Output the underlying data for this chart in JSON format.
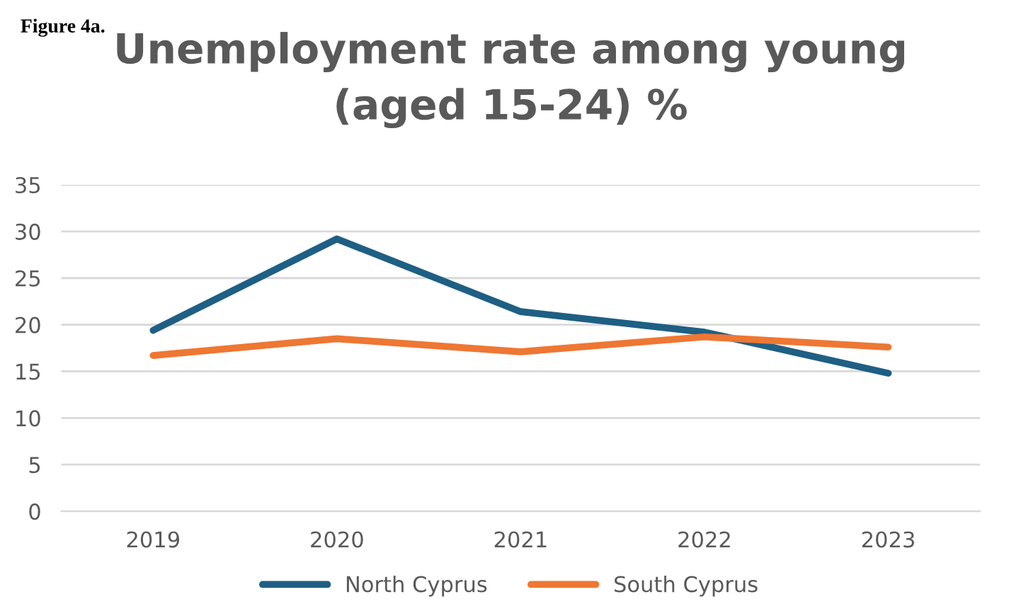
{
  "chart_data": {
    "type": "line",
    "title": "Unemployment rate among young\n(aged 15-24) %",
    "annotations": [
      "Figure 4a."
    ],
    "categories": [
      "2019",
      "2020",
      "2021",
      "2022",
      "2023"
    ],
    "series": [
      {
        "name": "North Cyprus",
        "color": "#1f5f84",
        "values": [
          19.4,
          29.2,
          21.4,
          19.2,
          14.8
        ]
      },
      {
        "name": "South Cyprus",
        "color": "#ee7733",
        "values": [
          16.7,
          18.5,
          17.1,
          18.7,
          17.6
        ]
      }
    ],
    "ylim": [
      0,
      35
    ],
    "yticks": [
      0,
      5,
      10,
      15,
      20,
      25,
      30,
      35
    ],
    "grid": "y",
    "legend": "bottom"
  }
}
